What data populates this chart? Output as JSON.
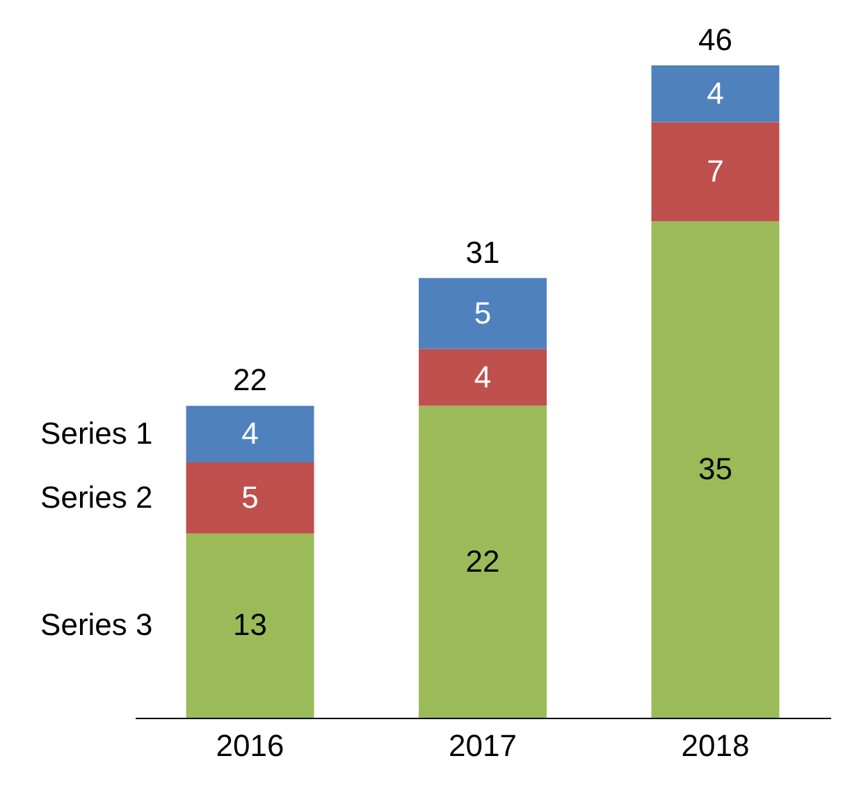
{
  "chart_data": {
    "type": "bar",
    "stacked": true,
    "data_labels": true,
    "categories": [
      "2016",
      "2017",
      "2018"
    ],
    "series": [
      {
        "name": "Series 3",
        "color": "#9bbb59",
        "values": [
          13,
          22,
          35
        ]
      },
      {
        "name": "Series 2",
        "color": "#c0504d",
        "values": [
          5,
          4,
          7
        ]
      },
      {
        "name": "Series 1",
        "color": "#4f81bd",
        "values": [
          4,
          5,
          4
        ]
      }
    ],
    "totals": [
      "22",
      "31",
      "46"
    ]
  }
}
